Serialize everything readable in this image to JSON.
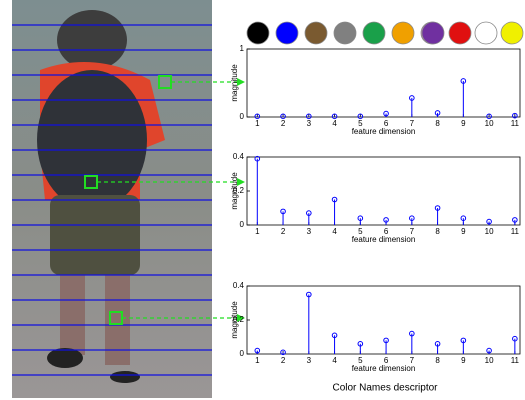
{
  "chart_data": [
    {
      "type": "stem",
      "ylabel": "magnitude",
      "xlabel": "feature dimension",
      "color": "#0000ff",
      "x": [
        1,
        2,
        3,
        4,
        5,
        6,
        7,
        8,
        9,
        10,
        11
      ],
      "values": [
        0.01,
        0.01,
        0.01,
        0.01,
        0.01,
        0.05,
        0.28,
        0.06,
        0.53,
        0.01,
        0.02
      ],
      "xlim": [
        0.6,
        11.2
      ],
      "xticks": [
        1,
        2,
        3,
        4,
        5,
        6,
        7,
        8,
        9,
        10,
        11
      ],
      "ylim": [
        0,
        1
      ],
      "yticks": [
        0,
        1
      ]
    },
    {
      "type": "stem",
      "ylabel": "magnitude",
      "xlabel": "feature dimension",
      "color": "#0000ff",
      "x": [
        1,
        2,
        3,
        4,
        5,
        6,
        7,
        8,
        9,
        10,
        11
      ],
      "values": [
        0.39,
        0.08,
        0.07,
        0.15,
        0.04,
        0.03,
        0.04,
        0.1,
        0.04,
        0.02,
        0.03
      ],
      "xlim": [
        0.6,
        11.2
      ],
      "xticks": [
        1,
        2,
        3,
        4,
        5,
        6,
        7,
        8,
        9,
        10,
        11
      ],
      "ylim": [
        0,
        0.4
      ],
      "yticks": [
        0,
        0.2,
        0.4
      ]
    },
    {
      "type": "stem",
      "ylabel": "magnitude",
      "xlabel": "feature dimension",
      "color": "#0000ff",
      "x": [
        1,
        2,
        3,
        4,
        5,
        6,
        7,
        8,
        9,
        10,
        11
      ],
      "values": [
        0.02,
        0.01,
        0.35,
        0.11,
        0.06,
        0.08,
        0.12,
        0.06,
        0.08,
        0.02,
        0.09
      ],
      "xlim": [
        0.6,
        11.2
      ],
      "xticks": [
        1,
        2,
        3,
        4,
        5,
        6,
        7,
        8,
        9,
        10,
        11
      ],
      "ylim": [
        0,
        0.4
      ],
      "yticks": [
        0,
        0.2,
        0.4
      ]
    }
  ],
  "caption": "Color Names descriptor"
}
